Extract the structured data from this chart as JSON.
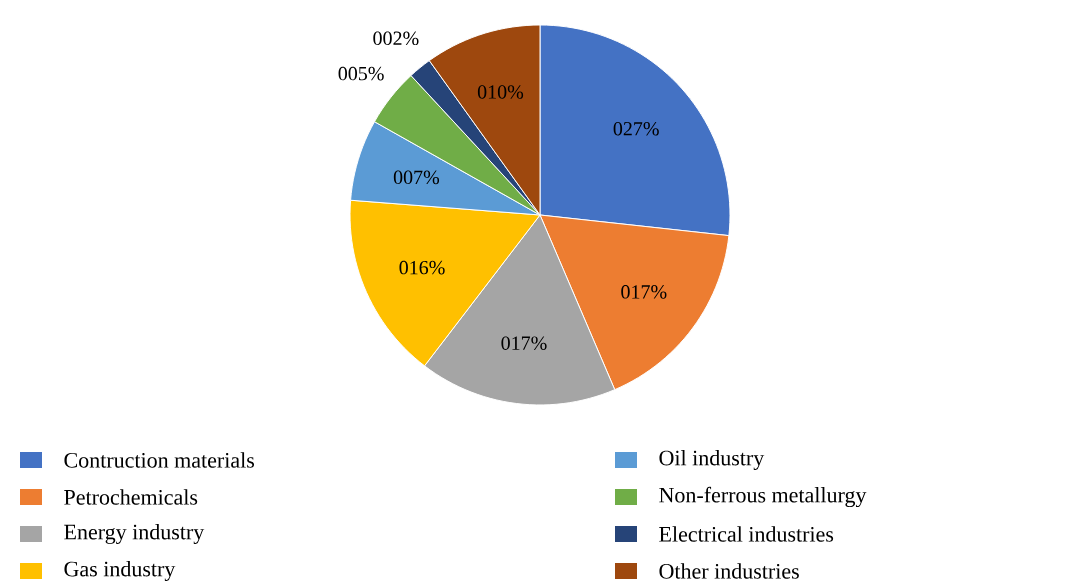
{
  "chart_data": {
    "type": "pie",
    "categories": [
      "Contruction materials",
      "Petrochemicals",
      "Energy industry",
      "Gas industry",
      "Oil industry",
      "Non-ferrous metallurgy",
      "Electrical industries",
      "Other industries"
    ],
    "values": [
      27,
      17,
      17,
      16,
      7,
      5,
      2,
      10
    ],
    "value_labels": [
      "027%",
      "017%",
      "017%",
      "016%",
      "007%",
      "005%",
      "002%",
      "010%"
    ],
    "colors": [
      "#4472c4",
      "#ed7d31",
      "#a5a5a5",
      "#ffc000",
      "#5b9bd5",
      "#70ad47",
      "#264478",
      "#9e480e"
    ],
    "legend": "bottom"
  }
}
